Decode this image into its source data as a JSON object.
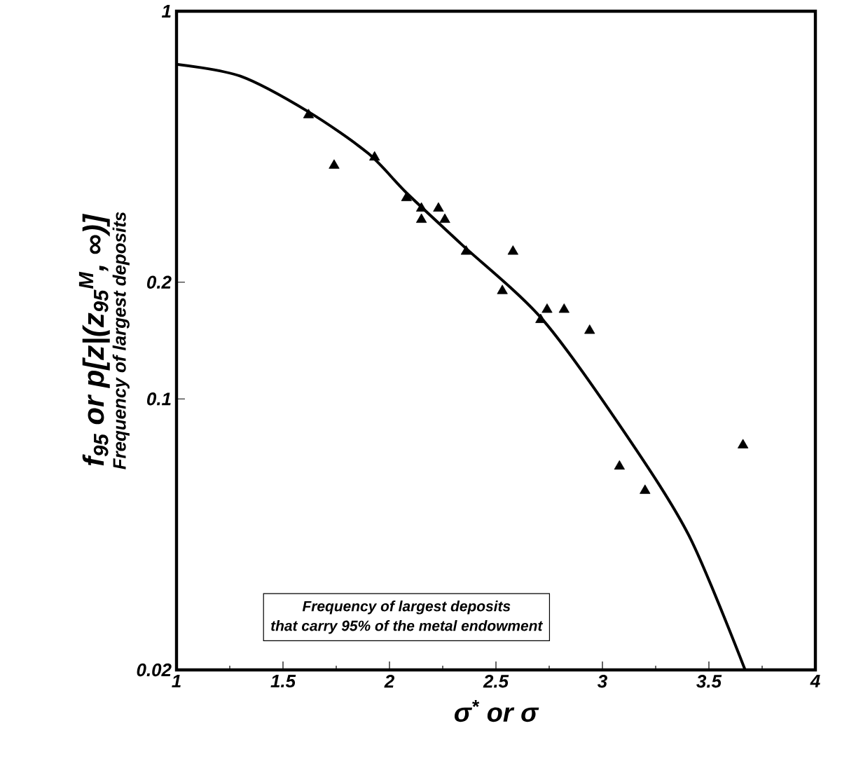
{
  "chart_data": {
    "type": "scatter",
    "xlabel": "σ$^{*}$ or σ",
    "ylabel": "f$_{95}$ or p[z|(z$_{95}$$^{M}$, ∞)]",
    "annotations": [
      "Frequency of largest deposits",
      "Frequency of largest deposits",
      "that carry 95% of the metal endowment"
    ],
    "xlim": [
      1,
      4
    ],
    "xticks": [
      1,
      1.5,
      2,
      2.5,
      3,
      3.5,
      4
    ],
    "ylim": [
      0.02,
      1
    ],
    "yticks": [
      0.02,
      0.1,
      0.2,
      1
    ],
    "log": "y",
    "series": [
      {
        "color": "#000000",
        "marker": "triangle",
        "x": [
          1.62,
          1.74,
          1.93,
          2.08,
          2.15,
          2.15,
          2.23,
          2.26,
          2.36,
          2.58,
          2.53,
          2.71,
          2.74,
          2.82,
          2.94,
          3.08,
          3.2,
          3.66
        ],
        "values": [
          0.54,
          0.4,
          0.42,
          0.33,
          0.31,
          0.29,
          0.31,
          0.29,
          0.24,
          0.24,
          0.19,
          0.16,
          0.17,
          0.17,
          0.15,
          0.067,
          0.058,
          0.076
        ]
      },
      {
        "type": "line",
        "color": "#000000",
        "marker": "none",
        "line_style": "solid",
        "x": [
          1.0,
          1.3,
          1.62,
          1.9,
          2.08,
          2.34,
          2.72,
          3.11,
          3.41,
          3.67
        ],
        "values": [
          0.73,
          0.68,
          0.55,
          0.43,
          0.34,
          0.25,
          0.16,
          0.081,
          0.044,
          0.02
        ]
      }
    ]
  }
}
